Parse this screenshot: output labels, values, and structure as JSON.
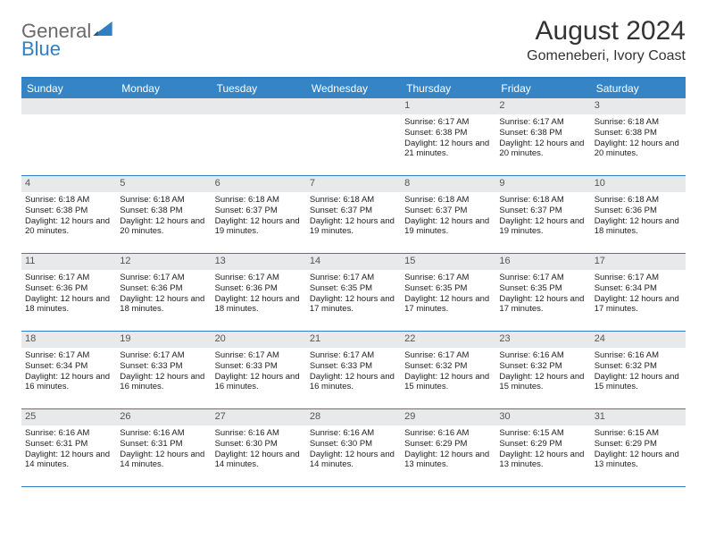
{
  "logo": {
    "text1": "General",
    "text2": "Blue"
  },
  "title": "August 2024",
  "location": "Gomeneberi, Ivory Coast",
  "colors": {
    "header_bg": "#3585c6",
    "border": "#2f7fc2",
    "daynum_bg": "#e7e9eb",
    "text": "#222222",
    "title": "#333333"
  },
  "dow": [
    "Sunday",
    "Monday",
    "Tuesday",
    "Wednesday",
    "Thursday",
    "Friday",
    "Saturday"
  ],
  "weeks": [
    [
      {
        "n": "",
        "sr": "",
        "ss": "",
        "dl": ""
      },
      {
        "n": "",
        "sr": "",
        "ss": "",
        "dl": ""
      },
      {
        "n": "",
        "sr": "",
        "ss": "",
        "dl": ""
      },
      {
        "n": "",
        "sr": "",
        "ss": "",
        "dl": ""
      },
      {
        "n": "1",
        "sr": "Sunrise: 6:17 AM",
        "ss": "Sunset: 6:38 PM",
        "dl": "Daylight: 12 hours and 21 minutes."
      },
      {
        "n": "2",
        "sr": "Sunrise: 6:17 AM",
        "ss": "Sunset: 6:38 PM",
        "dl": "Daylight: 12 hours and 20 minutes."
      },
      {
        "n": "3",
        "sr": "Sunrise: 6:18 AM",
        "ss": "Sunset: 6:38 PM",
        "dl": "Daylight: 12 hours and 20 minutes."
      }
    ],
    [
      {
        "n": "4",
        "sr": "Sunrise: 6:18 AM",
        "ss": "Sunset: 6:38 PM",
        "dl": "Daylight: 12 hours and 20 minutes."
      },
      {
        "n": "5",
        "sr": "Sunrise: 6:18 AM",
        "ss": "Sunset: 6:38 PM",
        "dl": "Daylight: 12 hours and 20 minutes."
      },
      {
        "n": "6",
        "sr": "Sunrise: 6:18 AM",
        "ss": "Sunset: 6:37 PM",
        "dl": "Daylight: 12 hours and 19 minutes."
      },
      {
        "n": "7",
        "sr": "Sunrise: 6:18 AM",
        "ss": "Sunset: 6:37 PM",
        "dl": "Daylight: 12 hours and 19 minutes."
      },
      {
        "n": "8",
        "sr": "Sunrise: 6:18 AM",
        "ss": "Sunset: 6:37 PM",
        "dl": "Daylight: 12 hours and 19 minutes."
      },
      {
        "n": "9",
        "sr": "Sunrise: 6:18 AM",
        "ss": "Sunset: 6:37 PM",
        "dl": "Daylight: 12 hours and 19 minutes."
      },
      {
        "n": "10",
        "sr": "Sunrise: 6:18 AM",
        "ss": "Sunset: 6:36 PM",
        "dl": "Daylight: 12 hours and 18 minutes."
      }
    ],
    [
      {
        "n": "11",
        "sr": "Sunrise: 6:17 AM",
        "ss": "Sunset: 6:36 PM",
        "dl": "Daylight: 12 hours and 18 minutes."
      },
      {
        "n": "12",
        "sr": "Sunrise: 6:17 AM",
        "ss": "Sunset: 6:36 PM",
        "dl": "Daylight: 12 hours and 18 minutes."
      },
      {
        "n": "13",
        "sr": "Sunrise: 6:17 AM",
        "ss": "Sunset: 6:36 PM",
        "dl": "Daylight: 12 hours and 18 minutes."
      },
      {
        "n": "14",
        "sr": "Sunrise: 6:17 AM",
        "ss": "Sunset: 6:35 PM",
        "dl": "Daylight: 12 hours and 17 minutes."
      },
      {
        "n": "15",
        "sr": "Sunrise: 6:17 AM",
        "ss": "Sunset: 6:35 PM",
        "dl": "Daylight: 12 hours and 17 minutes."
      },
      {
        "n": "16",
        "sr": "Sunrise: 6:17 AM",
        "ss": "Sunset: 6:35 PM",
        "dl": "Daylight: 12 hours and 17 minutes."
      },
      {
        "n": "17",
        "sr": "Sunrise: 6:17 AM",
        "ss": "Sunset: 6:34 PM",
        "dl": "Daylight: 12 hours and 17 minutes."
      }
    ],
    [
      {
        "n": "18",
        "sr": "Sunrise: 6:17 AM",
        "ss": "Sunset: 6:34 PM",
        "dl": "Daylight: 12 hours and 16 minutes."
      },
      {
        "n": "19",
        "sr": "Sunrise: 6:17 AM",
        "ss": "Sunset: 6:33 PM",
        "dl": "Daylight: 12 hours and 16 minutes."
      },
      {
        "n": "20",
        "sr": "Sunrise: 6:17 AM",
        "ss": "Sunset: 6:33 PM",
        "dl": "Daylight: 12 hours and 16 minutes."
      },
      {
        "n": "21",
        "sr": "Sunrise: 6:17 AM",
        "ss": "Sunset: 6:33 PM",
        "dl": "Daylight: 12 hours and 16 minutes."
      },
      {
        "n": "22",
        "sr": "Sunrise: 6:17 AM",
        "ss": "Sunset: 6:32 PM",
        "dl": "Daylight: 12 hours and 15 minutes."
      },
      {
        "n": "23",
        "sr": "Sunrise: 6:16 AM",
        "ss": "Sunset: 6:32 PM",
        "dl": "Daylight: 12 hours and 15 minutes."
      },
      {
        "n": "24",
        "sr": "Sunrise: 6:16 AM",
        "ss": "Sunset: 6:32 PM",
        "dl": "Daylight: 12 hours and 15 minutes."
      }
    ],
    [
      {
        "n": "25",
        "sr": "Sunrise: 6:16 AM",
        "ss": "Sunset: 6:31 PM",
        "dl": "Daylight: 12 hours and 14 minutes."
      },
      {
        "n": "26",
        "sr": "Sunrise: 6:16 AM",
        "ss": "Sunset: 6:31 PM",
        "dl": "Daylight: 12 hours and 14 minutes."
      },
      {
        "n": "27",
        "sr": "Sunrise: 6:16 AM",
        "ss": "Sunset: 6:30 PM",
        "dl": "Daylight: 12 hours and 14 minutes."
      },
      {
        "n": "28",
        "sr": "Sunrise: 6:16 AM",
        "ss": "Sunset: 6:30 PM",
        "dl": "Daylight: 12 hours and 14 minutes."
      },
      {
        "n": "29",
        "sr": "Sunrise: 6:16 AM",
        "ss": "Sunset: 6:29 PM",
        "dl": "Daylight: 12 hours and 13 minutes."
      },
      {
        "n": "30",
        "sr": "Sunrise: 6:15 AM",
        "ss": "Sunset: 6:29 PM",
        "dl": "Daylight: 12 hours and 13 minutes."
      },
      {
        "n": "31",
        "sr": "Sunrise: 6:15 AM",
        "ss": "Sunset: 6:29 PM",
        "dl": "Daylight: 12 hours and 13 minutes."
      }
    ]
  ]
}
